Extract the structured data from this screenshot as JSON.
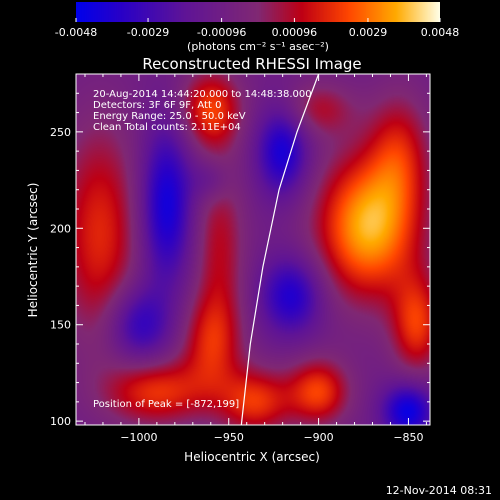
{
  "chart_data": {
    "type": "heatmap",
    "title": "Reconstructed RHESSI Image",
    "colorbar": {
      "tick_labels": [
        "-0.0048",
        "-0.0029",
        "-0.00096",
        "0.00096",
        "0.0029",
        "0.0048"
      ],
      "ticks": [
        -0.0048,
        -0.0029,
        -0.00096,
        0.00096,
        0.0029,
        0.0048
      ],
      "range": [
        -0.0048,
        0.0048
      ],
      "unit_label": "(photons cm⁻² s⁻¹ asec⁻²)"
    },
    "info_lines": [
      "20-Aug-2014 14:44:20.000 to 14:48:38.000",
      "Detectors: 3F 6F 9F, Att 0",
      "Energy Range: 25.0 - 50.0 keV",
      "Clean     Total counts: 2.11E+04"
    ],
    "peak_label": "Position of Peak = [-872,199]",
    "peak": [
      -872,
      199
    ],
    "xlabel": "Heliocentric X (arcsec)",
    "ylabel": "Heliocentric Y (arcsec)",
    "xlim": [
      -1035,
      -838
    ],
    "ylim": [
      98,
      280
    ],
    "xticks": [
      -1000,
      -950,
      -900,
      -850
    ],
    "xtick_labels": [
      "−1000",
      "−950",
      "−900",
      "−850"
    ],
    "yticks": [
      100,
      150,
      200,
      250
    ],
    "ytick_labels": [
      "100",
      "150",
      "200",
      "250"
    ],
    "limb_curve": [
      [
        -943,
        98
      ],
      [
        -938,
        140
      ],
      [
        -931,
        180
      ],
      [
        -922,
        220
      ],
      [
        -912,
        250
      ],
      [
        -900,
        280
      ]
    ],
    "blobs": [
      {
        "x": -872,
        "y": 201,
        "v": 0.0048,
        "sx": 20,
        "sy": 26
      },
      {
        "x": -1022,
        "y": 197,
        "v": 0.0028,
        "sx": 16,
        "sy": 40
      },
      {
        "x": -960,
        "y": 262,
        "v": 0.0031,
        "sx": 12,
        "sy": 14
      },
      {
        "x": -955,
        "y": 190,
        "v": 0.002,
        "sx": 10,
        "sy": 34
      },
      {
        "x": -960,
        "y": 140,
        "v": 0.0024,
        "sx": 12,
        "sy": 18
      },
      {
        "x": -990,
        "y": 115,
        "v": 0.003,
        "sx": 20,
        "sy": 12
      },
      {
        "x": -935,
        "y": 110,
        "v": 0.003,
        "sx": 14,
        "sy": 12
      },
      {
        "x": -900,
        "y": 115,
        "v": 0.0032,
        "sx": 12,
        "sy": 12
      },
      {
        "x": -845,
        "y": 150,
        "v": 0.003,
        "sx": 10,
        "sy": 18
      },
      {
        "x": -855,
        "y": 240,
        "v": 0.0022,
        "sx": 12,
        "sy": 22
      },
      {
        "x": -900,
        "y": 262,
        "v": 0.0018,
        "sx": 14,
        "sy": 10
      },
      {
        "x": -985,
        "y": 212,
        "v": -0.0034,
        "sx": 10,
        "sy": 28
      },
      {
        "x": -920,
        "y": 240,
        "v": -0.0032,
        "sx": 10,
        "sy": 16
      },
      {
        "x": -915,
        "y": 165,
        "v": -0.003,
        "sx": 12,
        "sy": 14
      },
      {
        "x": -1000,
        "y": 150,
        "v": -0.0026,
        "sx": 12,
        "sy": 14
      },
      {
        "x": -850,
        "y": 105,
        "v": -0.0036,
        "sx": 10,
        "sy": 10
      },
      {
        "x": -960,
        "y": 225,
        "v": -0.0012,
        "sx": 8,
        "sy": 8
      }
    ]
  },
  "footer": {
    "timestamp": "12-Nov-2014 08:31"
  }
}
